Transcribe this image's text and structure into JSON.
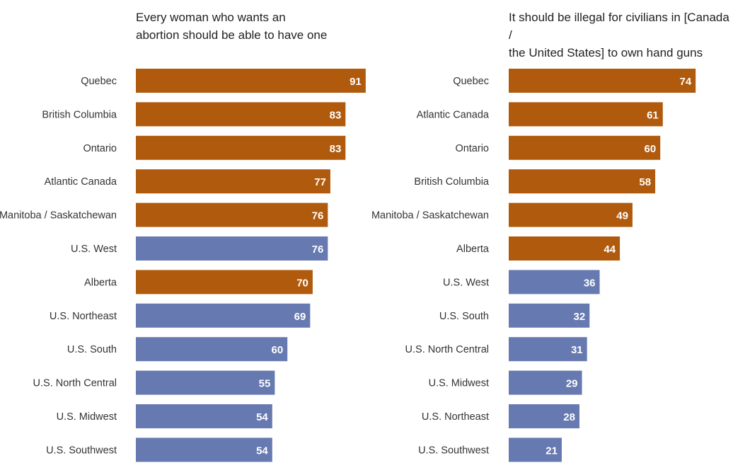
{
  "colors": {
    "canada": "#b05a0e",
    "us": "#6679b0"
  },
  "chart_data": [
    {
      "type": "bar",
      "orientation": "horizontal",
      "title": "Every woman who wants an\nabortion should be able to have one",
      "xlim": [
        0,
        100
      ],
      "grid": false,
      "categories": [
        "Quebec",
        "British Columbia",
        "Ontario",
        "Atlantic Canada",
        "Manitoba / Saskatchewan",
        "U.S. West",
        "Alberta",
        "U.S. Northeast",
        "U.S. South",
        "U.S. North Central",
        "U.S. Midwest",
        "U.S. Southwest"
      ],
      "values": [
        91,
        83,
        83,
        77,
        76,
        76,
        70,
        69,
        60,
        55,
        54,
        54
      ],
      "country": [
        "canada",
        "canada",
        "canada",
        "canada",
        "canada",
        "us",
        "canada",
        "us",
        "us",
        "us",
        "us",
        "us"
      ]
    },
    {
      "type": "bar",
      "orientation": "horizontal",
      "title": "It should be illegal for civilians in [Canada /\nthe United States] to own hand guns",
      "xlim": [
        0,
        100
      ],
      "grid": false,
      "categories": [
        "Quebec",
        "Atlantic Canada",
        "Ontario",
        "British Columbia",
        "Manitoba / Saskatchewan",
        "Alberta",
        "U.S. West",
        "U.S. South",
        "U.S. North Central",
        "U.S. Midwest",
        "U.S. Northeast",
        "U.S. Southwest"
      ],
      "values": [
        74,
        61,
        60,
        58,
        49,
        44,
        36,
        32,
        31,
        29,
        28,
        21
      ],
      "country": [
        "canada",
        "canada",
        "canada",
        "canada",
        "canada",
        "canada",
        "us",
        "us",
        "us",
        "us",
        "us",
        "us"
      ]
    }
  ]
}
